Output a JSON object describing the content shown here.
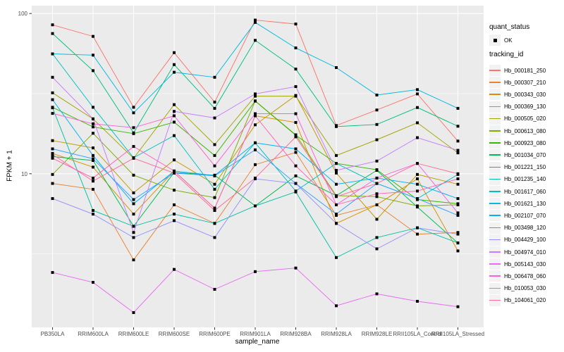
{
  "figure": {
    "panel_bg": "#EBEBEB",
    "grid_color": "#FFFFFF",
    "tick_color": "#333333",
    "tick_label_color": "#4D4D4D",
    "point_color": "#000000",
    "legend_key_bg": "#F2F2F2"
  },
  "legend": {
    "quant_status_title": "quant_status",
    "quant_status_value": "OK",
    "tracking_id_title": "tracking_id"
  },
  "chart_data": {
    "type": "line",
    "title": "",
    "xlabel": "sample_name",
    "ylabel": "FPKM + 1",
    "x_scale": "discrete",
    "y_scale": "log10",
    "ylim": [
      1.1,
      112
    ],
    "y_tick_values": [
      100,
      10
    ],
    "y_tick_labels": [
      "100",
      "10"
    ],
    "y_minor_gridlines": [
      31.62,
      3.162
    ],
    "grid": true,
    "legend_position": "right",
    "marker": "black-square",
    "categories": [
      "PB350LA",
      "RRIM600LA",
      "RRIM600LE",
      "RRIM600SE",
      "RRIM600PE",
      "RRIM901LA",
      "RRIM928BA",
      "RRIM928LA",
      "RRIM928LE",
      "RRII105LA_Control",
      "RRII105LA_Stressed"
    ],
    "series": [
      {
        "name": "Hb_000181_250",
        "color": "#F8766D",
        "values": [
          85,
          72,
          26,
          57,
          28,
          91,
          86,
          20,
          25,
          31.5,
          16
        ]
      },
      {
        "name": "Hb_000307_210",
        "color": "#EA8331",
        "values": [
          8.7,
          8.0,
          2.9,
          6.4,
          4.9,
          11.4,
          13.6,
          5.5,
          6.4,
          4.2,
          4.3
        ]
      },
      {
        "name": "Hb_000343_030",
        "color": "#D89000",
        "values": [
          13.4,
          11.0,
          5.6,
          10.4,
          6.1,
          23,
          20.9,
          4.9,
          6.4,
          9.3,
          3.3
        ]
      },
      {
        "name": "Hb_000369_130",
        "color": "#C09B00",
        "values": [
          16.1,
          14.5,
          7.6,
          12.2,
          8.6,
          20.2,
          30.8,
          10.1,
          5.2,
          9.9,
          8.6
        ]
      },
      {
        "name": "Hb_000505_020",
        "color": "#A3A500",
        "values": [
          32,
          22,
          12.5,
          27,
          15.2,
          30.5,
          30.5,
          13.0,
          16.3,
          20.8,
          13.5
        ]
      },
      {
        "name": "Hb_000613_080",
        "color": "#7CAE00",
        "values": [
          9.9,
          17.9,
          9.8,
          7.9,
          7.1,
          28.5,
          17.5,
          7.3,
          7.2,
          6.3,
          6.4
        ]
      },
      {
        "name": "Hb_000923_080",
        "color": "#39B600",
        "values": [
          26,
          19.6,
          17.8,
          21,
          13,
          28.4,
          17.4,
          11.6,
          10.6,
          6.9,
          6.5
        ]
      },
      {
        "name": "Hb_001034_070",
        "color": "#00BB4E",
        "values": [
          12.8,
          12.1,
          4.7,
          10.2,
          9.8,
          6.3,
          9.7,
          7.3,
          10.5,
          6.2,
          3.7
        ]
      },
      {
        "name": "Hb_001221_150",
        "color": "#00BF7D",
        "values": [
          75,
          44,
          18,
          48,
          25.6,
          68,
          45,
          19.7,
          20.3,
          25.9,
          19.8
        ]
      },
      {
        "name": "Hb_001235_140",
        "color": "#00C1A3",
        "values": [
          25.8,
          5.9,
          4.7,
          5.6,
          4.9,
          6.3,
          7.7,
          3.0,
          4.0,
          4.6,
          3.7
        ]
      },
      {
        "name": "Hb_001617_060",
        "color": "#00BFC4",
        "values": [
          56,
          26,
          12.6,
          17.3,
          8.0,
          15.6,
          7.8,
          11.6,
          8.7,
          7.0,
          9.9
        ]
      },
      {
        "name": "Hb_001621_130",
        "color": "#00BAE0",
        "values": [
          56,
          55,
          24,
          43,
          40,
          88,
          61,
          46,
          31,
          33.5,
          25.6
        ]
      },
      {
        "name": "Hb_002107_070",
        "color": "#00B0F6",
        "values": [
          29,
          13,
          6.5,
          10.4,
          9.76,
          15.6,
          14.3,
          8.6,
          9.4,
          8.6,
          7.0
        ]
      },
      {
        "name": "Hb_003498_120",
        "color": "#35A2FF",
        "values": [
          14.3,
          12.4,
          6.9,
          10.1,
          9.7,
          14.1,
          8.7,
          5.6,
          8.7,
          7.0,
          5.5
        ]
      },
      {
        "name": "Hb_004429_100",
        "color": "#9590FF",
        "values": [
          7.0,
          5.6,
          4.0,
          5.1,
          4.0,
          9.3,
          8.7,
          4.9,
          3.4,
          4.6,
          4.2
        ]
      },
      {
        "name": "Hb_004974_010",
        "color": "#C77CFF",
        "values": [
          40,
          22,
          4.3,
          24.5,
          22.3,
          31.5,
          35,
          10.5,
          12,
          16.8,
          14
        ]
      },
      {
        "name": "Hb_005143_030",
        "color": "#E76BF3",
        "values": [
          2.42,
          2.1,
          1.36,
          2.53,
          1.9,
          2.45,
          2.58,
          1.5,
          1.78,
          1.6,
          1.48
        ]
      },
      {
        "name": "Hb_006478_060",
        "color": "#FA62DB",
        "values": [
          23.8,
          20.5,
          19.4,
          23,
          11.2,
          23.7,
          23.7,
          6.4,
          9.4,
          11.6,
          5.7
        ]
      },
      {
        "name": "Hb_010053_030",
        "color": "#FF62BC",
        "values": [
          12.5,
          9.4,
          14.8,
          10.4,
          6.1,
          23.0,
          11.2,
          6.4,
          7.5,
          7.8,
          9.3
        ]
      },
      {
        "name": "Hb_104061_020",
        "color": "#FF6A98",
        "values": [
          13.2,
          9.0,
          12.5,
          10.1,
          5.9,
          9.4,
          17.0,
          7.2,
          8.7,
          11.6,
          10.0
        ]
      }
    ]
  }
}
